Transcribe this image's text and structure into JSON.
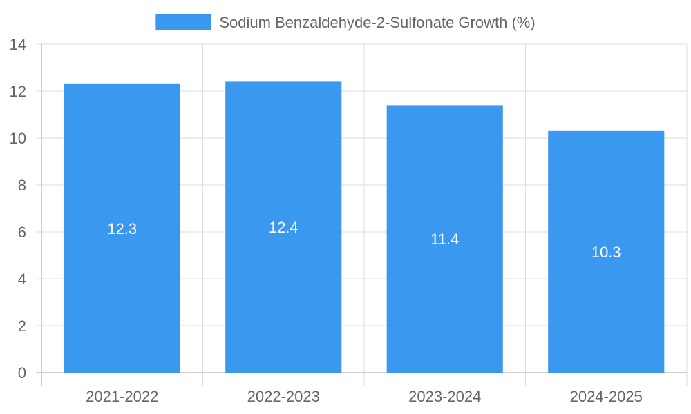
{
  "chart_data": {
    "type": "bar",
    "title": "",
    "xlabel": "",
    "ylabel": "",
    "categories": [
      "2021-2022",
      "2022-2023",
      "2023-2024",
      "2024-2025"
    ],
    "series": [
      {
        "name": "Sodium Benzaldehyde-2-Sulfonate Growth (%)",
        "values": [
          12.3,
          12.4,
          11.4,
          10.3
        ],
        "color": "#3a99ef"
      }
    ],
    "data_labels": [
      "12.3",
      "12.4",
      "11.4",
      "10.3"
    ],
    "ylim": [
      0,
      14
    ],
    "yticks": [
      0,
      2,
      4,
      6,
      8,
      10,
      12,
      14
    ],
    "ytick_labels": [
      "0",
      "2",
      "4",
      "6",
      "8",
      "10",
      "12",
      "14"
    ],
    "grid": true,
    "legend_position": "top-center"
  }
}
